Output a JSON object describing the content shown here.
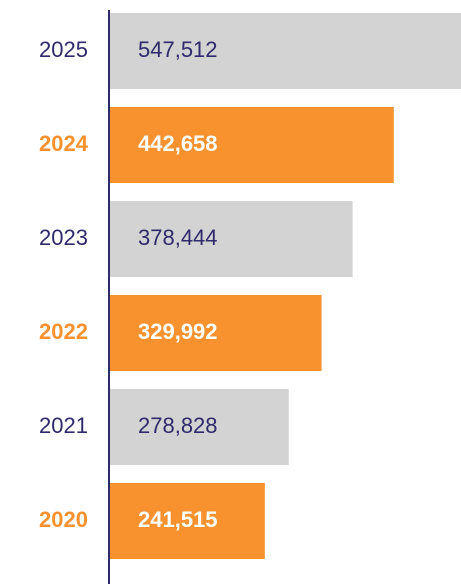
{
  "chart_data": {
    "type": "bar",
    "orientation": "horizontal",
    "categories": [
      "2025",
      "2024",
      "2023",
      "2022",
      "2021",
      "2020"
    ],
    "values": [
      547512,
      442658,
      378444,
      329992,
      278828,
      241515
    ],
    "value_labels": [
      "547,512",
      "442,658",
      "378,444",
      "329,992",
      "278,828",
      "241,515"
    ],
    "colors": [
      "#d3d3d3",
      "#f7922f",
      "#d3d3d3",
      "#f7922f",
      "#d3d3d3",
      "#f7922f"
    ],
    "highlight_color": "#f7922f",
    "text_color": "#2e2a6b"
  }
}
